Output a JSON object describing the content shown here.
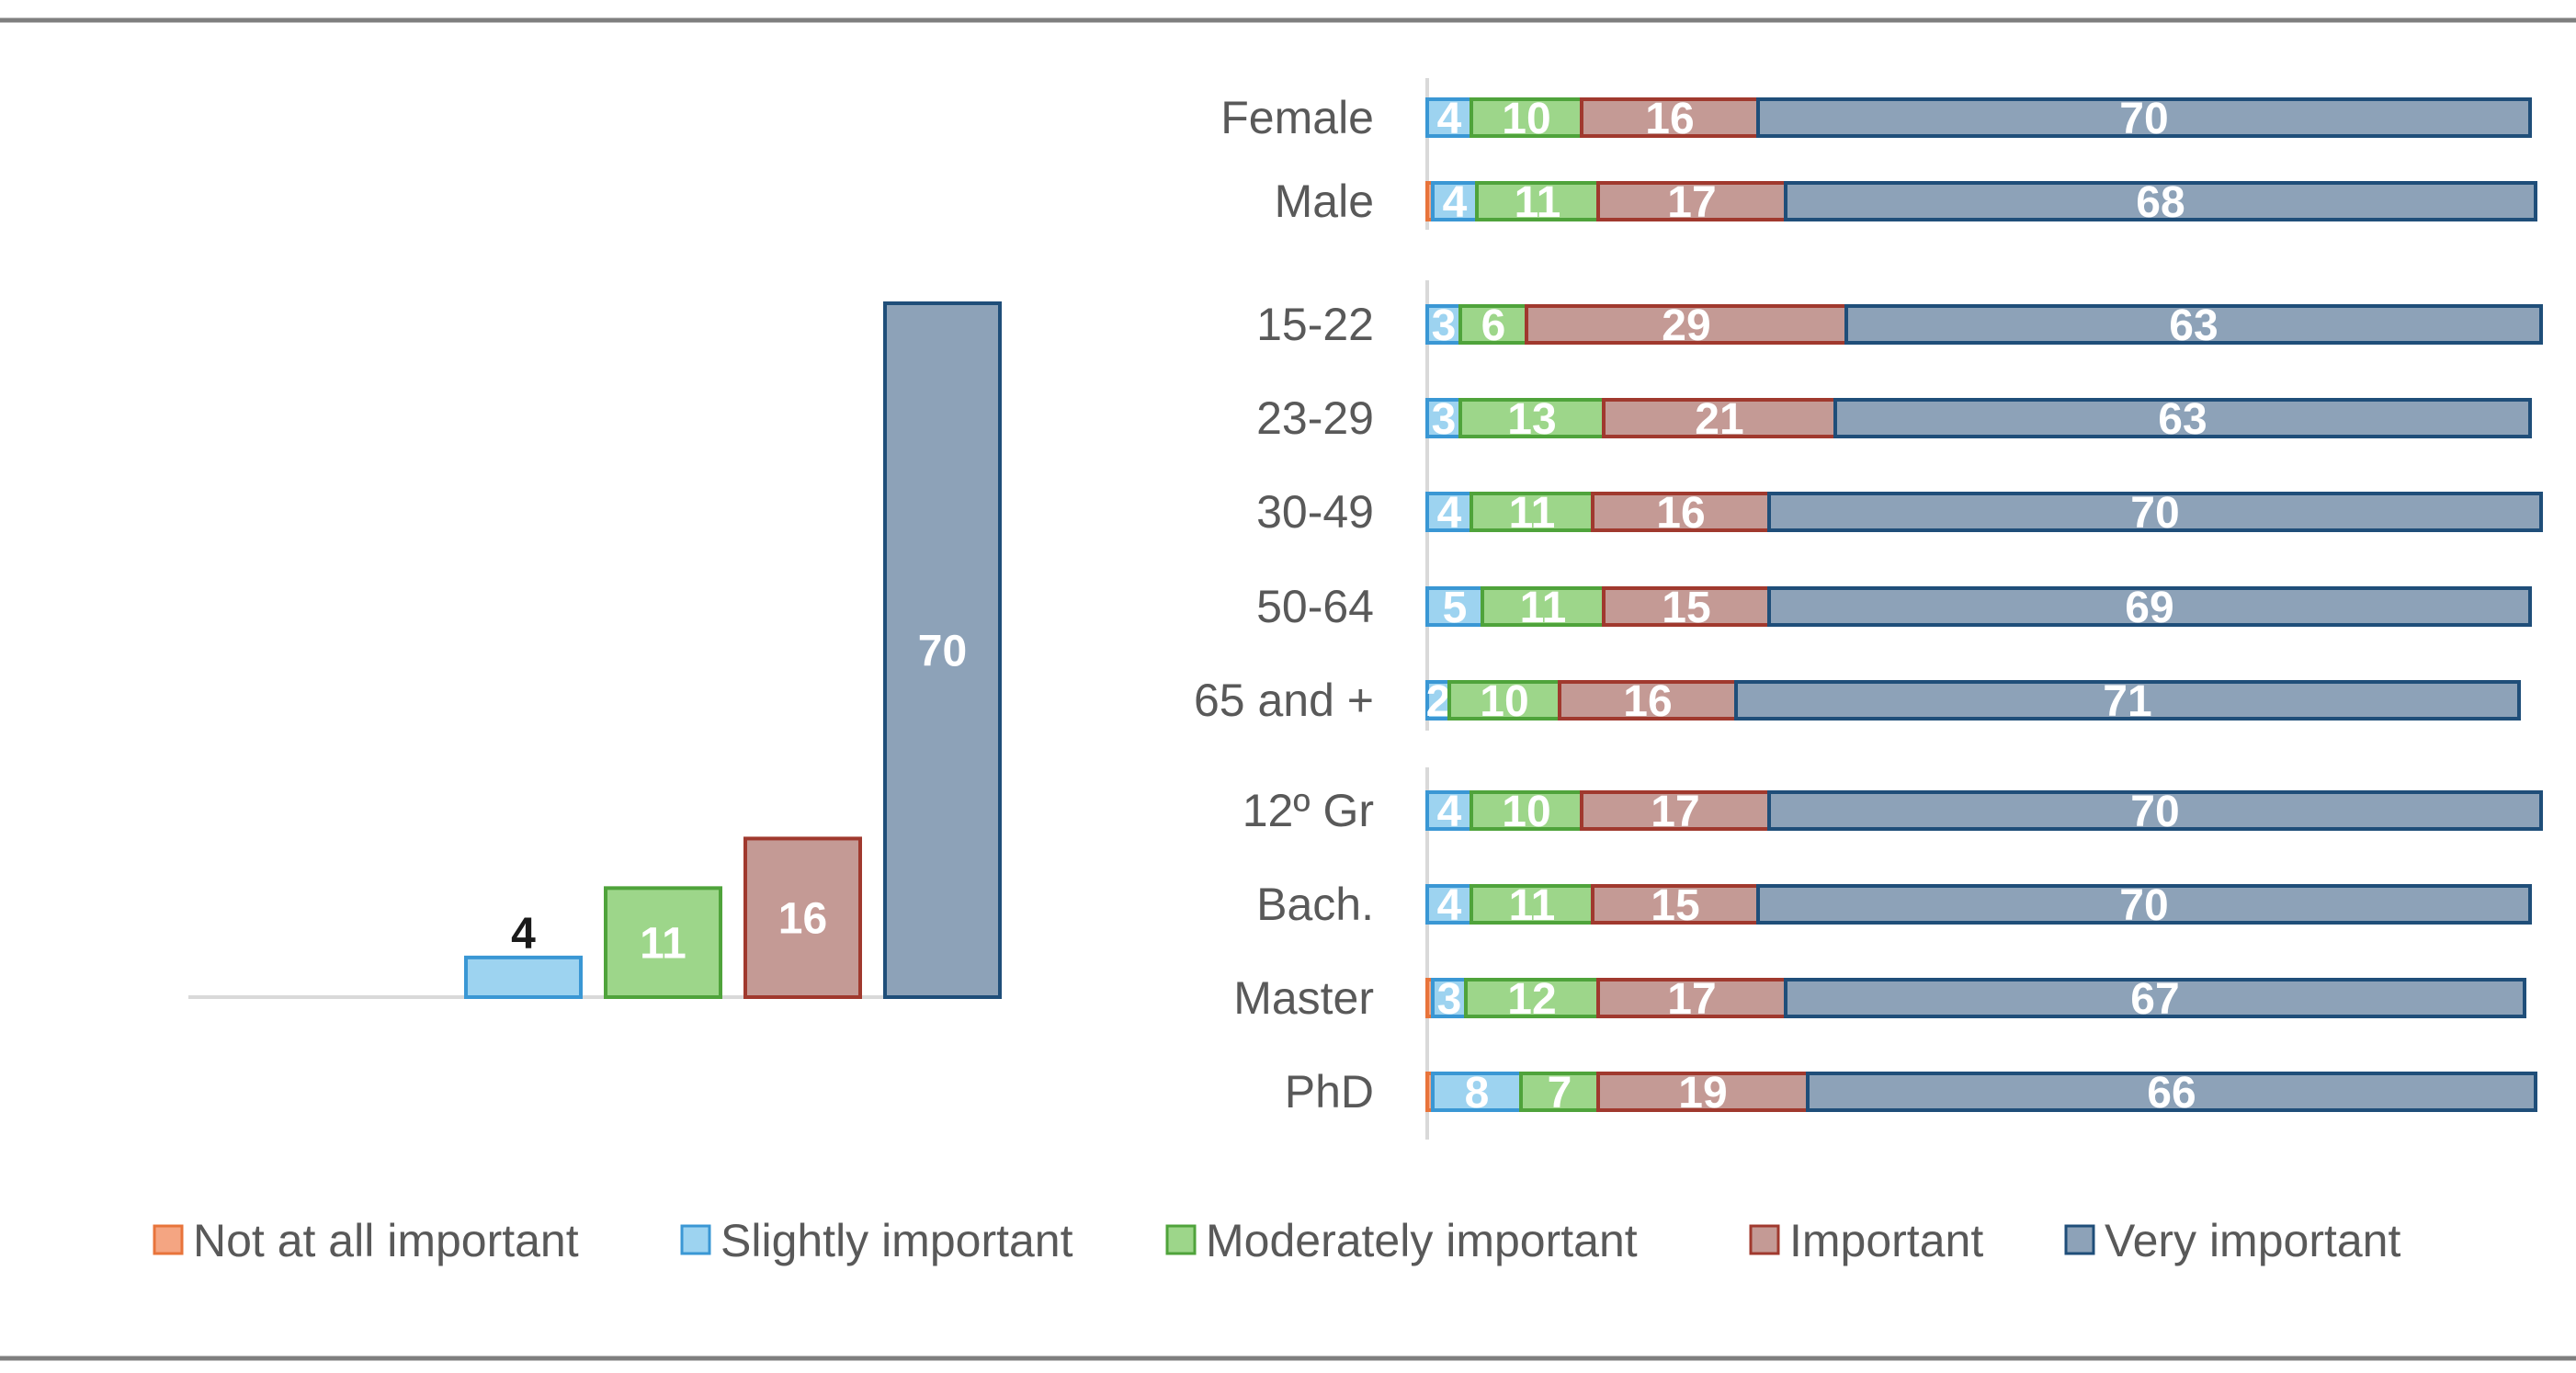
{
  "colors": {
    "not_at_all": "#F4A582",
    "slightly": "#9DD3F0",
    "moderately": "#9DD68A",
    "important": "#C49A95",
    "very": "#8DA2B8",
    "not_at_all_stroke": "#E8743B",
    "slightly_stroke": "#3A97D4",
    "moderately_stroke": "#4FA33B",
    "important_stroke": "#A0392E",
    "very_stroke": "#1F4E79",
    "rule": "#7F7F7F",
    "axis": "#D9D9D9"
  },
  "chart_data": [
    {
      "type": "bar",
      "title": "",
      "categories": [
        "Not at all important",
        "Slightly important",
        "Moderately important",
        "Important",
        "Very important"
      ],
      "values": [
        0,
        4,
        11,
        16,
        70
      ],
      "labels": [
        "",
        "4",
        "11",
        "16",
        "70"
      ],
      "ylim": [
        0,
        70
      ]
    },
    {
      "type": "stacked-bar-horizontal",
      "title": "",
      "series_names": [
        "Not at all important",
        "Slightly important",
        "Moderately important",
        "Important",
        "Very important"
      ],
      "groups": [
        {
          "rows": [
            {
              "label": "Female",
              "values": [
                0,
                4,
                10,
                16,
                70
              ]
            },
            {
              "label": "Male",
              "values": [
                0.5,
                4,
                11,
                17,
                68
              ]
            }
          ]
        },
        {
          "rows": [
            {
              "label": "15-22",
              "values": [
                0,
                3,
                6,
                29,
                63
              ]
            },
            {
              "label": "23-29",
              "values": [
                0,
                3,
                13,
                21,
                63
              ]
            },
            {
              "label": "30-49",
              "values": [
                0,
                4,
                11,
                16,
                70
              ]
            },
            {
              "label": "50-64",
              "values": [
                0,
                5,
                11,
                15,
                69
              ]
            },
            {
              "label": "65 and +",
              "values": [
                0,
                2,
                10,
                16,
                71
              ]
            }
          ]
        },
        {
          "rows": [
            {
              "label": "12º Gr",
              "values": [
                0,
                4,
                10,
                17,
                70
              ]
            },
            {
              "label": "Bach.",
              "values": [
                0,
                4,
                11,
                15,
                70
              ]
            },
            {
              "label": "Master",
              "values": [
                0.5,
                3,
                12,
                17,
                67
              ]
            },
            {
              "label": "PhD",
              "values": [
                0.5,
                8,
                7,
                19,
                66
              ]
            }
          ]
        }
      ]
    }
  ],
  "legend": {
    "items": [
      "Not at all important",
      "Slightly important",
      "Moderately important",
      "Important",
      "Very important"
    ]
  }
}
